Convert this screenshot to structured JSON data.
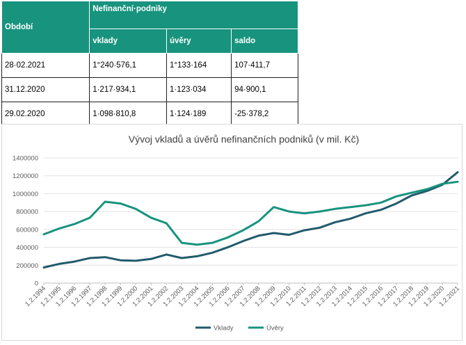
{
  "table": {
    "header_period": "Období",
    "header_group": "Nefinanční·podniky",
    "columns": [
      "vklady",
      "úvěry",
      "saldo"
    ],
    "rows": [
      {
        "period": "28·02.2021",
        "vklady": "1°240·576,1",
        "uvery": "1°133·164",
        "saldo": "107·411,7"
      },
      {
        "period": "31.12.2020",
        "vklady": "1·217·934,1",
        "uvery": "1·123·034",
        "saldo": "94·900,1"
      },
      {
        "period": "29.02.2020",
        "vklady": "1·098·810,8",
        "uvery": "1·124·189",
        "saldo": "-25·378,2"
      }
    ]
  },
  "chart_data": {
    "type": "line",
    "title": "Vývoj vkladů a úvěrů nefinančních podniků (v mil. Kč)",
    "xlabel": "",
    "ylabel": "",
    "ylim": [
      0,
      1400000
    ],
    "yticks": [
      "0",
      "200000",
      "400000",
      "600000",
      "800000",
      "1000000",
      "1200000",
      "1400000"
    ],
    "categories": [
      "1.2.1994",
      "1.2.1995",
      "1.2.1996",
      "1.2.1997",
      "1.2.1998",
      "1.2.1999",
      "1.2.2000",
      "1.2.2001",
      "1.2.2002",
      "1.2.2003",
      "1.2.2004",
      "1.2.2005",
      "1.2.2006",
      "1.2.2007",
      "1.2.2008",
      "1.2.2009",
      "1.2.2010",
      "1.2.2011",
      "1.2.2012",
      "1.2.2013",
      "1.2.2014",
      "1.2.2015",
      "1.2.2016",
      "1.2.2017",
      "1.2.2018",
      "1.2.2019",
      "1.2.2020",
      "1.2.2021"
    ],
    "legend_position": "bottom",
    "grid": true,
    "series": [
      {
        "name": "Vklady",
        "color": "#215a6b",
        "values": [
          175000,
          215000,
          240000,
          280000,
          290000,
          255000,
          250000,
          270000,
          320000,
          280000,
          300000,
          340000,
          400000,
          470000,
          530000,
          560000,
          540000,
          590000,
          620000,
          680000,
          720000,
          780000,
          820000,
          890000,
          980000,
          1030000,
          1100000,
          1240000
        ]
      },
      {
        "name": "Úvěry",
        "color": "#17937e",
        "values": [
          545000,
          610000,
          660000,
          730000,
          910000,
          890000,
          830000,
          730000,
          670000,
          450000,
          430000,
          450000,
          510000,
          590000,
          690000,
          850000,
          800000,
          780000,
          800000,
          830000,
          850000,
          870000,
          900000,
          970000,
          1010000,
          1050000,
          1110000,
          1133000
        ]
      }
    ]
  }
}
